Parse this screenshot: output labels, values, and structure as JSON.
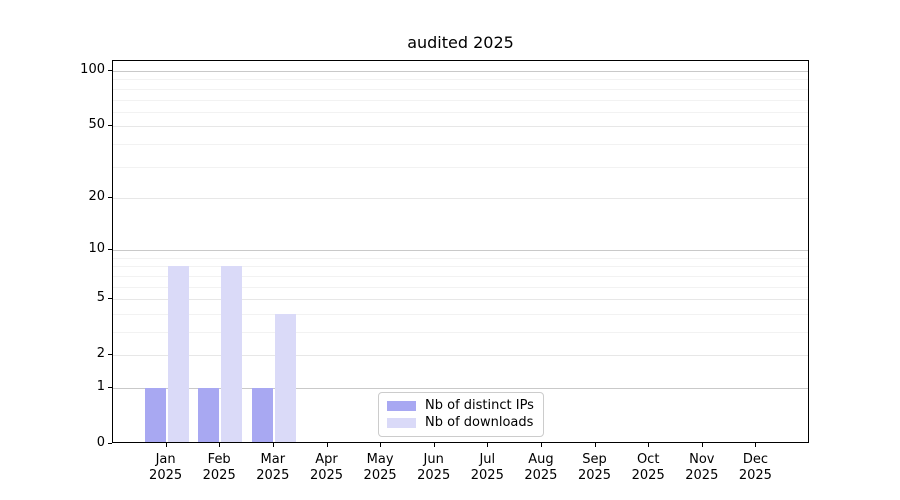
{
  "chart_data": {
    "type": "bar",
    "title": "audited 2025",
    "year": "2025",
    "categories": [
      "Jan",
      "Feb",
      "Mar",
      "Apr",
      "May",
      "Jun",
      "Jul",
      "Aug",
      "Sep",
      "Oct",
      "Nov",
      "Dec"
    ],
    "series": [
      {
        "name": "Nb of distinct IPs",
        "color": "#a8a8f2",
        "values": [
          1,
          1,
          1,
          0,
          0,
          0,
          0,
          0,
          0,
          0,
          0,
          0
        ]
      },
      {
        "name": "Nb of downloads",
        "color": "#dadaf8",
        "values": [
          8,
          8,
          4,
          0,
          0,
          0,
          0,
          0,
          0,
          0,
          0,
          0
        ]
      }
    ],
    "yscale": "log1p",
    "ylim": [
      0,
      100
    ],
    "yticks_labeled": [
      0,
      1,
      2,
      5,
      10,
      20,
      50,
      100
    ],
    "yticks_minor": [
      3,
      4,
      6,
      7,
      8,
      9,
      30,
      40,
      60,
      70,
      80,
      90
    ],
    "grid": "horizontal",
    "legend_position": "bottom-center",
    "colors": {
      "background": "#ffffff",
      "spine": "#000000",
      "text": "#000000",
      "grid_power10": "#c9c9c9",
      "grid_major": "#e7e7e7",
      "grid_minor": "#f2f2f2",
      "legend_border": "#cccccc"
    }
  }
}
